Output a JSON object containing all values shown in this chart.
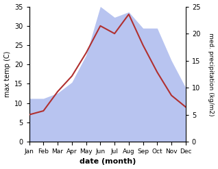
{
  "months": [
    "Jan",
    "Feb",
    "Mar",
    "Apr",
    "May",
    "Jun",
    "Jul",
    "Aug",
    "Sep",
    "Oct",
    "Nov",
    "Dec"
  ],
  "temperature": [
    7,
    8,
    13,
    17,
    23,
    30,
    28,
    33,
    25,
    18,
    12,
    9
  ],
  "precipitation": [
    8,
    8,
    9,
    11,
    16,
    25,
    23,
    24,
    21,
    21,
    15,
    10
  ],
  "temp_color": "#b03030",
  "precip_color": "#b8c4f0",
  "ylabel_left": "max temp (C)",
  "ylabel_right": "med. precipitation (kg/m2)",
  "xlabel": "date (month)",
  "ylim_left": [
    0,
    35
  ],
  "ylim_right": [
    0,
    25
  ],
  "yticks_left": [
    0,
    5,
    10,
    15,
    20,
    25,
    30,
    35
  ],
  "yticks_right": [
    0,
    5,
    10,
    15,
    20,
    25
  ],
  "background_color": "#ffffff"
}
